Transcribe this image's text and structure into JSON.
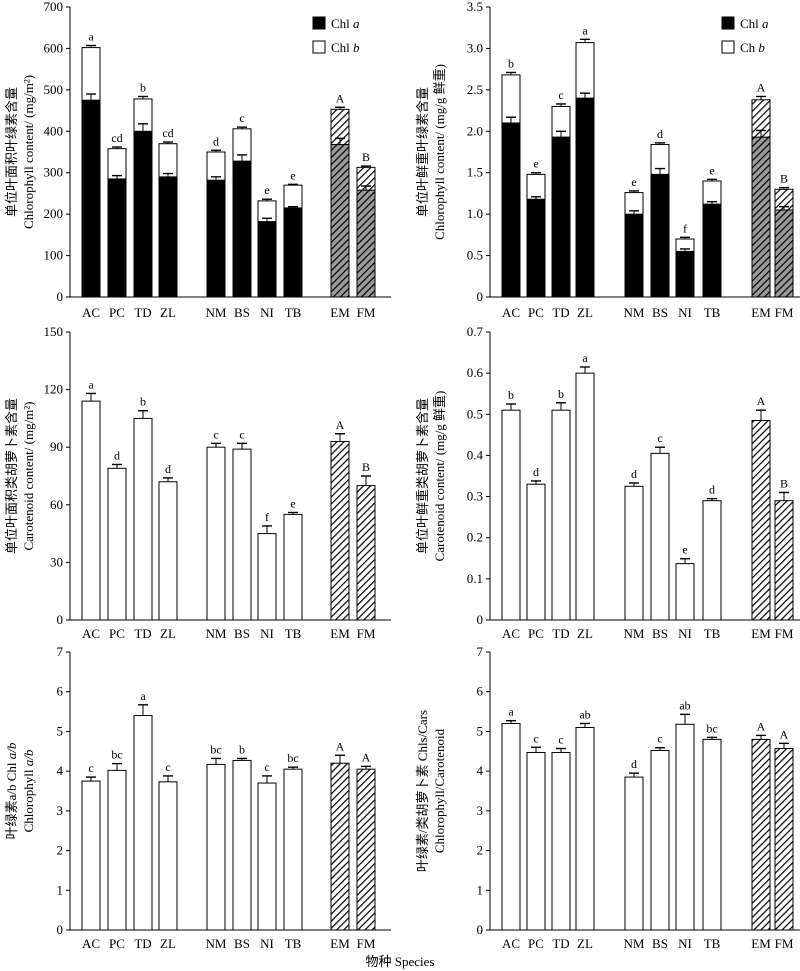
{
  "figure_xlabel": "物种 Species",
  "colors": {
    "chl_a": "#000000",
    "chl_b": "#ffffff",
    "generic": "#ffffff",
    "hatch": "#000000"
  },
  "chart_data": [
    {
      "id": "p1",
      "type": "bar",
      "stacked": true,
      "categories": [
        "AC",
        "PC",
        "TD",
        "ZL",
        "NM",
        "BS",
        "NI",
        "TB",
        "EM",
        "FM"
      ],
      "ylabel_cn": "单位叶面积叶绿素含量",
      "ylabel_en": "Chlorophyll content/ (mg/m²)",
      "ylim": [
        0,
        700
      ],
      "yticks": [
        0,
        100,
        200,
        300,
        400,
        500,
        600,
        700
      ],
      "ytick_labels": [
        "0",
        "100",
        "200",
        "300",
        "400",
        "500",
        "600",
        "700"
      ],
      "legend": "top-right",
      "legend_entries": [
        {
          "text": "Chl ",
          "italic": "a"
        },
        {
          "text": "Chl ",
          "italic": "b"
        }
      ],
      "series": [
        {
          "name": "Chl a",
          "values": [
            475,
            285,
            400,
            290,
            282,
            328,
            182,
            215,
            368,
            258
          ],
          "errors": [
            15,
            8,
            18,
            8,
            8,
            15,
            8,
            3,
            15,
            10
          ]
        },
        {
          "name": "Chl b",
          "values": [
            127,
            73,
            78,
            80,
            68,
            78,
            50,
            55,
            85,
            55
          ],
          "errors": [
            5,
            4,
            6,
            4,
            4,
            4,
            4,
            2,
            5,
            3
          ]
        }
      ],
      "labels": [
        "a",
        "cd",
        "b",
        "cd",
        "d",
        "c",
        "e",
        "e",
        "A",
        "B"
      ]
    },
    {
      "id": "p2",
      "type": "bar",
      "stacked": true,
      "categories": [
        "AC",
        "PC",
        "TD",
        "ZL",
        "NM",
        "BS",
        "NI",
        "TB",
        "EM",
        "FM"
      ],
      "ylabel_cn": "单位叶鲜重叶绿素含量",
      "ylabel_en": "Chlorophyll content/ (mg/g 鲜重)",
      "ylim": [
        0,
        3.5
      ],
      "yticks": [
        0,
        0.5,
        1,
        1.5,
        2,
        2.5,
        3,
        3.5
      ],
      "ytick_labels": [
        "0",
        "0.5",
        "1.0",
        "1.5",
        "2.0",
        "2.5",
        "3.0",
        "3.5"
      ],
      "legend": "top-right",
      "legend_entries": [
        {
          "text": "Chl ",
          "italic": "a"
        },
        {
          "text": "Ch  ",
          "italic": "b"
        }
      ],
      "series": [
        {
          "name": "Chl a",
          "values": [
            2.1,
            1.18,
            1.93,
            2.4,
            1.0,
            1.48,
            0.55,
            1.12,
            1.93,
            1.05
          ],
          "errors": [
            0.07,
            0.03,
            0.07,
            0.06,
            0.04,
            0.07,
            0.03,
            0.03,
            0.08,
            0.04
          ]
        },
        {
          "name": "Chl b",
          "values": [
            0.58,
            0.3,
            0.37,
            0.67,
            0.26,
            0.36,
            0.15,
            0.28,
            0.45,
            0.25
          ],
          "errors": [
            0.03,
            0.02,
            0.03,
            0.04,
            0.02,
            0.02,
            0.02,
            0.02,
            0.04,
            0.02
          ]
        }
      ],
      "labels": [
        "b",
        "e",
        "c",
        "a",
        "e",
        "d",
        "f",
        "e",
        "A",
        "B"
      ]
    },
    {
      "id": "p3",
      "type": "bar",
      "stacked": false,
      "categories": [
        "AC",
        "PC",
        "TD",
        "ZL",
        "NM",
        "BS",
        "NI",
        "TB",
        "EM",
        "FM"
      ],
      "ylabel_cn": "单位叶面积类胡萝卜素含量",
      "ylabel_en": "Carotenoid content/ (mg/m²)",
      "ylim": [
        0,
        150
      ],
      "yticks": [
        0,
        30,
        60,
        90,
        120,
        150
      ],
      "ytick_labels": [
        "0",
        "30",
        "60",
        "90",
        "120",
        "150"
      ],
      "values": [
        114,
        79,
        105,
        72,
        90,
        89,
        45,
        55,
        93,
        70
      ],
      "errors": [
        4,
        2,
        4,
        2,
        2,
        3,
        4,
        1,
        4,
        5
      ],
      "labels": [
        "a",
        "d",
        "b",
        "d",
        "c",
        "c",
        "f",
        "e",
        "A",
        "B"
      ]
    },
    {
      "id": "p4",
      "type": "bar",
      "stacked": false,
      "categories": [
        "AC",
        "PC",
        "TD",
        "ZL",
        "NM",
        "BS",
        "NI",
        "TB",
        "EM",
        "FM"
      ],
      "ylabel_cn": "单位叶鲜重类胡萝卜素含量",
      "ylabel_en": "Carotenoid content/ (mg/g 鲜重)",
      "ylim": [
        0,
        0.7
      ],
      "yticks": [
        0,
        0.1,
        0.2,
        0.3,
        0.4,
        0.5,
        0.6,
        0.7
      ],
      "ytick_labels": [
        "0",
        "0.1",
        "0.2",
        "0.3",
        "0.4",
        "0.5",
        "0.6",
        "0.7"
      ],
      "values": [
        0.51,
        0.33,
        0.51,
        0.6,
        0.325,
        0.405,
        0.137,
        0.29,
        0.485,
        0.29
      ],
      "errors": [
        0.015,
        0.008,
        0.018,
        0.015,
        0.008,
        0.015,
        0.012,
        0.005,
        0.025,
        0.02
      ],
      "labels": [
        "b",
        "d",
        "b",
        "a",
        "d",
        "c",
        "e",
        "d",
        "A",
        "B"
      ]
    },
    {
      "id": "p5",
      "type": "bar",
      "stacked": false,
      "categories": [
        "AC",
        "PC",
        "TD",
        "ZL",
        "NM",
        "BS",
        "NI",
        "TB",
        "EM",
        "FM"
      ],
      "ylabel_cn": "叶绿素a/b Chl ",
      "ylabel_cn_italic": "a/b",
      "ylabel_en": "Chlorophyll ",
      "ylabel_en_italic": "a/b",
      "ylim": [
        0,
        7
      ],
      "yticks": [
        0,
        1,
        2,
        3,
        4,
        5,
        6,
        7
      ],
      "ytick_labels": [
        "0",
        "1",
        "2",
        "3",
        "4",
        "5",
        "6",
        "7"
      ],
      "values": [
        3.75,
        4.02,
        5.4,
        3.73,
        4.17,
        4.27,
        3.7,
        4.05,
        4.2,
        4.05
      ],
      "errors": [
        0.1,
        0.17,
        0.27,
        0.15,
        0.15,
        0.05,
        0.18,
        0.05,
        0.2,
        0.07
      ],
      "labels": [
        "c",
        "bc",
        "a",
        "c",
        "bc",
        "b",
        "c",
        "bc",
        "A",
        "A"
      ]
    },
    {
      "id": "p6",
      "type": "bar",
      "stacked": false,
      "categories": [
        "AC",
        "PC",
        "TD",
        "ZL",
        "NM",
        "BS",
        "NI",
        "TB",
        "EM",
        "FM"
      ],
      "ylabel_cn": "叶绿素/类胡萝卜素 Chls/Cars",
      "ylabel_en": "Chlorophyll/Carotenoid",
      "ylim": [
        0,
        7
      ],
      "yticks": [
        0,
        1,
        2,
        3,
        4,
        5,
        6,
        7
      ],
      "ytick_labels": [
        "0",
        "1",
        "2",
        "3",
        "4",
        "5",
        "6",
        "7"
      ],
      "values": [
        5.2,
        4.47,
        4.47,
        5.1,
        3.85,
        4.52,
        5.18,
        4.8,
        4.8,
        4.57
      ],
      "errors": [
        0.07,
        0.13,
        0.1,
        0.1,
        0.1,
        0.07,
        0.25,
        0.05,
        0.1,
        0.13
      ],
      "labels": [
        "a",
        "c",
        "c",
        "ab",
        "d",
        "c",
        "ab",
        "bc",
        "A",
        "A"
      ]
    }
  ]
}
